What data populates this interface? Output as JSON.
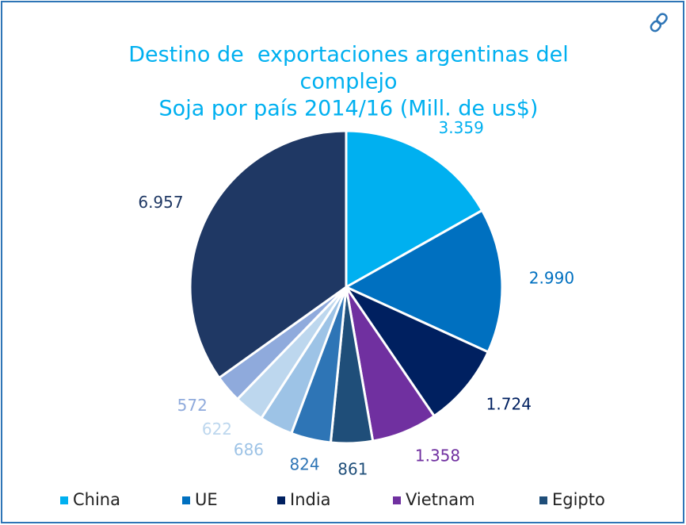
{
  "chart_data": {
    "type": "pie",
    "title": [
      "Destino de  exportaciones argentinas del",
      "complejo",
      "Soja por país 2014/16 (Mill. de us$)"
    ],
    "categories": [
      "China",
      "UE",
      "India",
      "Vietnam",
      "Egipto",
      null,
      null,
      null,
      null,
      null
    ],
    "values": [
      3359,
      2990,
      1724,
      1358,
      861,
      824,
      686,
      622,
      572,
      6957
    ],
    "value_labels": [
      "3.359",
      "2.990",
      "1.724",
      "1.358",
      "861",
      "824",
      "686",
      "622",
      "572",
      "6.957"
    ],
    "colors": [
      "#00b0f0",
      "#0070c0",
      "#002060",
      "#7030a0",
      "#1f4e79",
      "#2e75b6",
      "#9dc3e6",
      "#bdd7ee",
      "#8faadc",
      "#1f3864"
    ],
    "legend": "bottom"
  }
}
